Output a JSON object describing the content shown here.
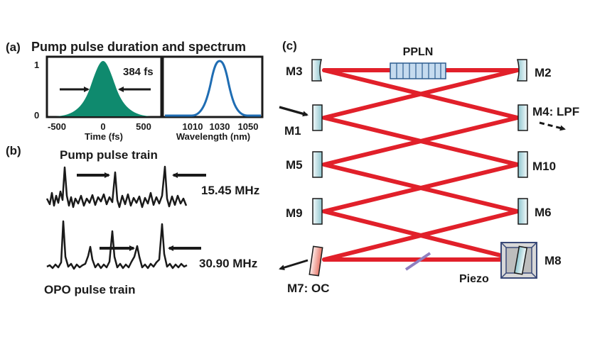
{
  "panel_a": {
    "tag": "(a)",
    "title": "Pump pulse duration and spectrum",
    "y_ticks": [
      "1",
      "0"
    ],
    "duration_label": "384 fs",
    "time_ticks": [
      "-500",
      "0",
      "500"
    ],
    "time_axis": "Time (fs)",
    "wl_ticks": [
      "1010",
      "1030",
      "1050"
    ],
    "wl_axis": "Wavelength (nm)",
    "pulse_fill": "#0f8a6e",
    "spectrum_color": "#1f6db3"
  },
  "panel_b": {
    "tag": "(b)",
    "pump_train_label": "Pump pulse train",
    "pump_rate": "15.45 MHz",
    "opo_rate": "30.90 MHz",
    "opo_train_label": "OPO pulse train"
  },
  "panel_c": {
    "tag": "(c)",
    "crystal": "PPLN",
    "mirrors": {
      "m3": "M3",
      "m2": "M2",
      "m1": "M1",
      "m4": "M4: LPF",
      "m5": "M5",
      "m10": "M10",
      "m9": "M9",
      "m6": "M6",
      "m7": "M7: OC",
      "m8": "M8"
    },
    "piezo": "Piezo",
    "beam_color": "#e1202a"
  }
}
